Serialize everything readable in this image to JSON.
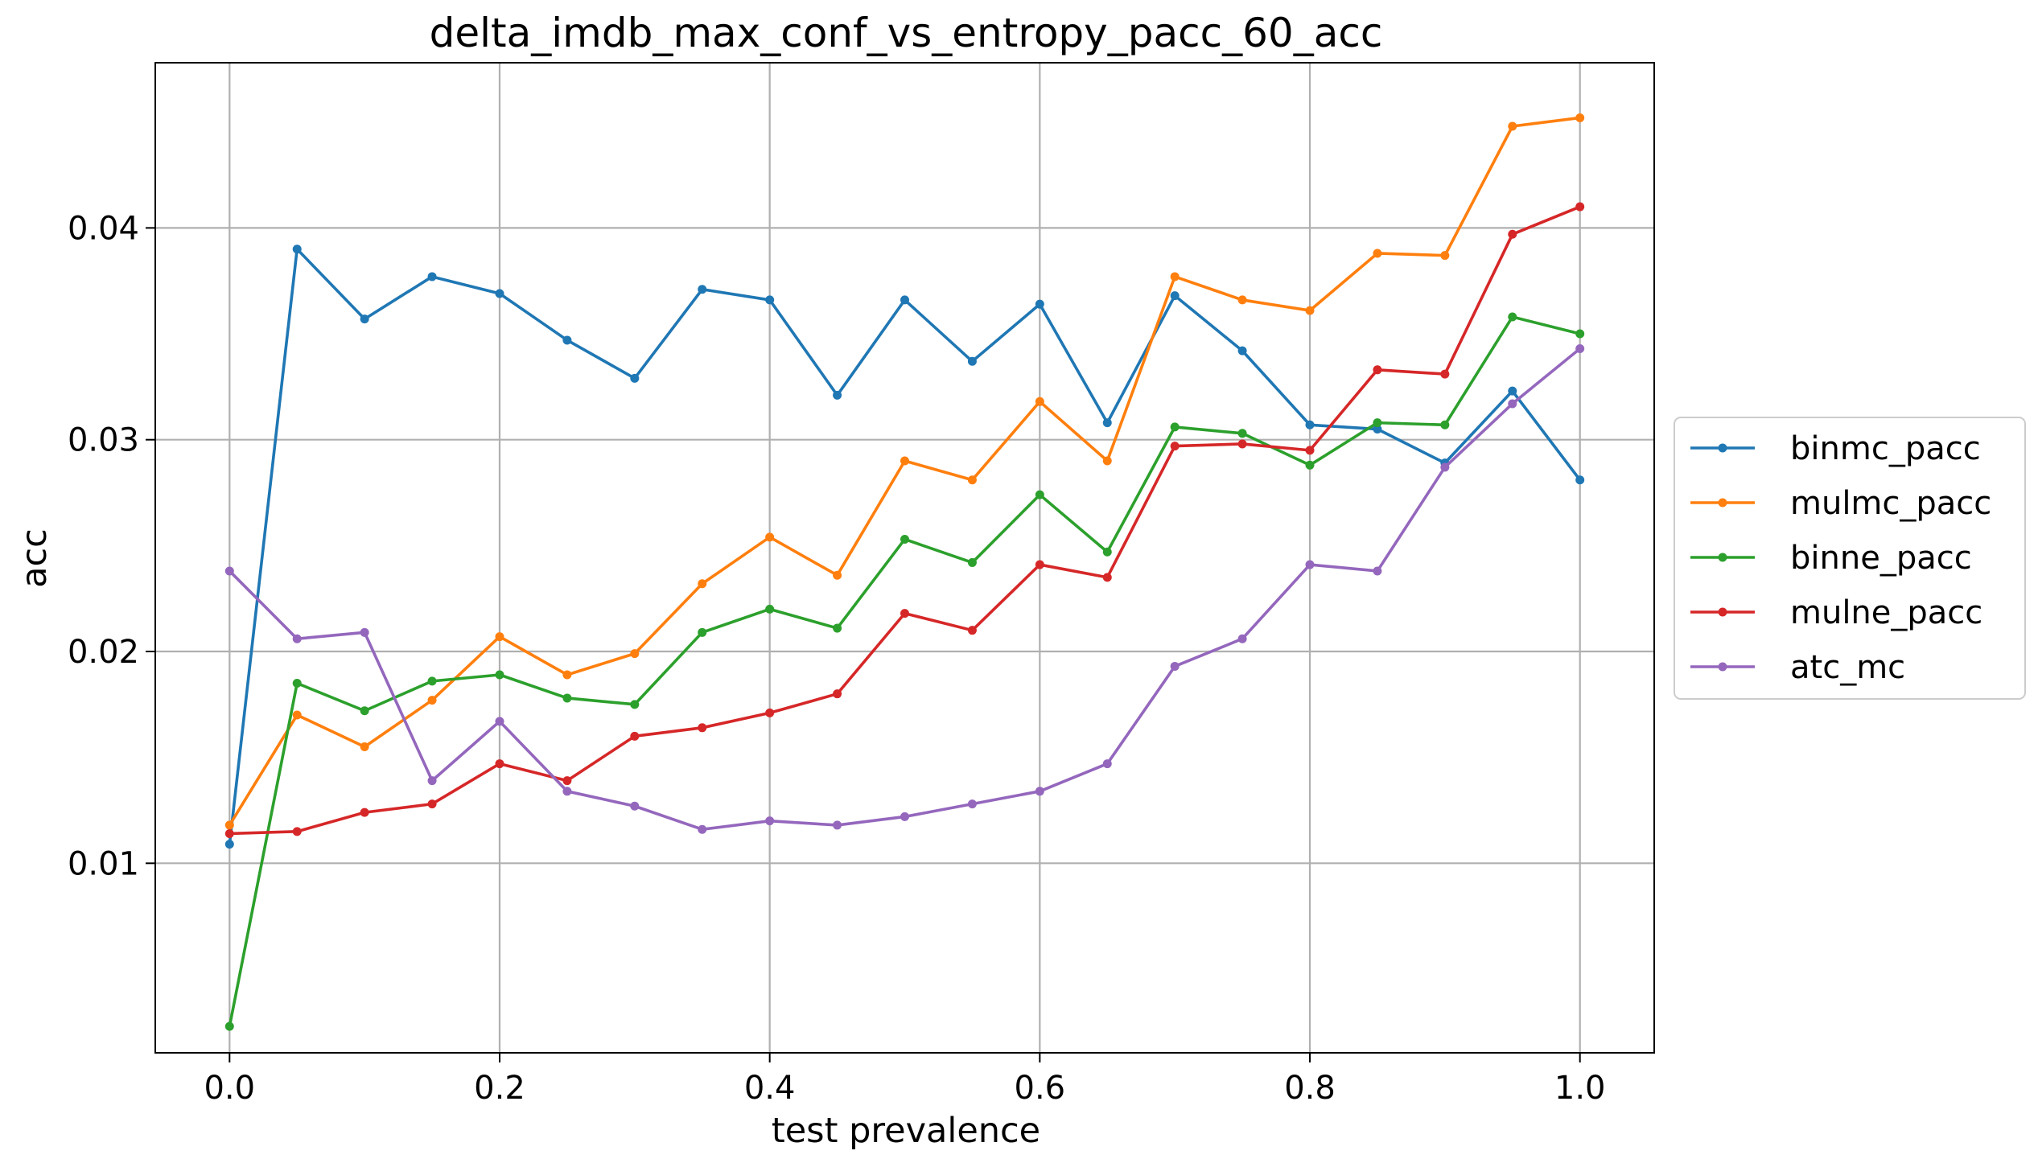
{
  "chart_data": {
    "type": "line",
    "title": "delta_imdb_max_conf_vs_entropy_pacc_60_acc",
    "xlabel": "test prevalence",
    "ylabel": "acc",
    "xlim": [
      -0.055,
      1.055
    ],
    "ylim": [
      0.00105,
      0.0478
    ],
    "grid": true,
    "legend_position": "outside-right",
    "x_ticks": [
      0.0,
      0.2,
      0.4,
      0.6,
      0.8,
      1.0
    ],
    "x_tick_labels": [
      "0.0",
      "0.2",
      "0.4",
      "0.6",
      "0.8",
      "1.0"
    ],
    "y_ticks": [
      0.01,
      0.02,
      0.03,
      0.04
    ],
    "y_tick_labels": [
      "0.01",
      "0.02",
      "0.03",
      "0.04"
    ],
    "x": [
      0.0,
      0.05,
      0.1,
      0.15,
      0.2,
      0.25,
      0.3,
      0.35,
      0.4,
      0.45,
      0.5,
      0.55,
      0.6,
      0.65,
      0.7,
      0.75,
      0.8,
      0.85,
      0.9,
      0.95,
      1.0
    ],
    "series": [
      {
        "name": "binmc_pacc",
        "color": "#1f77b4",
        "values": [
          0.0109,
          0.039,
          0.0357,
          0.0377,
          0.0369,
          0.0347,
          0.0329,
          0.0371,
          0.0366,
          0.0321,
          0.0366,
          0.0337,
          0.0364,
          0.0308,
          0.0368,
          0.0342,
          0.0307,
          0.0305,
          0.0289,
          0.0323,
          0.0281
        ]
      },
      {
        "name": "mulmc_pacc",
        "color": "#ff7f0e",
        "values": [
          0.0118,
          0.017,
          0.0155,
          0.0177,
          0.0207,
          0.0189,
          0.0199,
          0.0232,
          0.0254,
          0.0236,
          0.029,
          0.0281,
          0.0318,
          0.029,
          0.0377,
          0.0366,
          0.0361,
          0.0388,
          0.0387,
          0.0448,
          0.0452
        ]
      },
      {
        "name": "binne_pacc",
        "color": "#2ca02c",
        "values": [
          0.0023,
          0.0185,
          0.0172,
          0.0186,
          0.0189,
          0.0178,
          0.0175,
          0.0209,
          0.022,
          0.0211,
          0.0253,
          0.0242,
          0.0274,
          0.0247,
          0.0306,
          0.0303,
          0.0288,
          0.0308,
          0.0307,
          0.0358,
          0.035
        ]
      },
      {
        "name": "mulne_pacc",
        "color": "#d62728",
        "values": [
          0.0114,
          0.0115,
          0.0124,
          0.0128,
          0.0147,
          0.0139,
          0.016,
          0.0164,
          0.0171,
          0.018,
          0.0218,
          0.021,
          0.0241,
          0.0235,
          0.0297,
          0.0298,
          0.0295,
          0.0333,
          0.0331,
          0.0397,
          0.041
        ]
      },
      {
        "name": "atc_mc",
        "color": "#9467bd",
        "values": [
          0.0238,
          0.0206,
          0.0209,
          0.0139,
          0.0167,
          0.0134,
          0.0127,
          0.0116,
          0.012,
          0.0118,
          0.0122,
          0.0128,
          0.0134,
          0.0147,
          0.0193,
          0.0206,
          0.0241,
          0.0238,
          0.0287,
          0.0317,
          0.0343
        ]
      }
    ]
  }
}
